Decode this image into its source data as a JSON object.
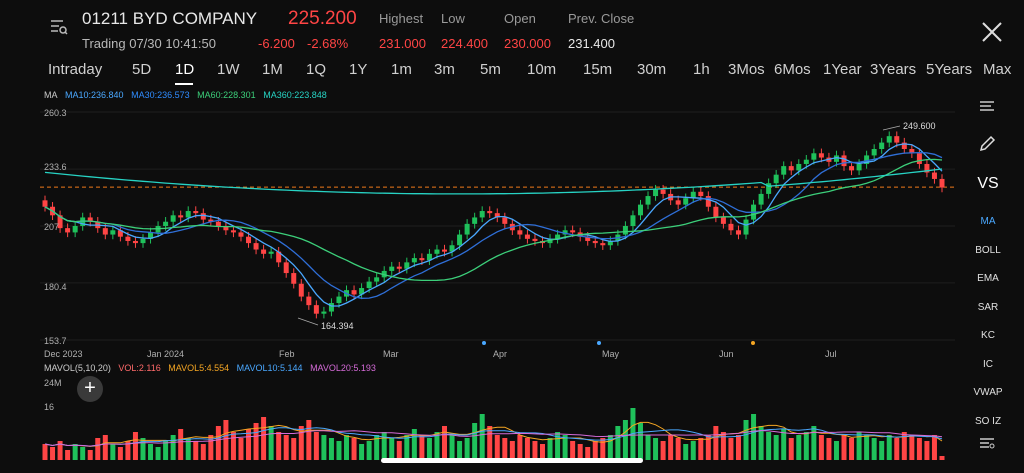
{
  "header": {
    "symbol": "01211 BYD COMPANY",
    "price": "225.200",
    "trading": "Trading 07/30 10:41:50",
    "change": "-6.200",
    "change_pct": "-2.68%",
    "highest_label": "Highest",
    "highest": "231.000",
    "low_label": "Low",
    "low": "224.400",
    "open_label": "Open",
    "open": "230.000",
    "prev_close_label": "Prev. Close",
    "prev_close": "231.400"
  },
  "tabs": [
    "Intraday",
    "5D",
    "1D",
    "1W",
    "1M",
    "1Q",
    "1Y",
    "1m",
    "3m",
    "5m",
    "10m",
    "15m",
    "30m",
    "1h",
    "3Mos",
    "6Mos",
    "1Year",
    "3Years",
    "5Years",
    "Max"
  ],
  "active_tab": "1D",
  "ma_legend": {
    "title": "MA",
    "ma10": "MA10:236.840",
    "ma30": "MA30:236.573",
    "ma60": "MA60:228.301",
    "ma360": "MA360:223.848"
  },
  "y_axis": [
    "260.3",
    "233.6",
    "207",
    "180.4",
    "153.7"
  ],
  "x_axis": [
    "Dec 2023",
    "Jan 2024",
    "Feb",
    "Mar",
    "Apr",
    "May",
    "Jun",
    "Jul"
  ],
  "annotations": {
    "high": "249.600",
    "low": "164.394"
  },
  "vol_legend": {
    "title": "MAVOL(5,10,20)",
    "vol": "VOL:2.116",
    "mavol5": "MAVOL5:4.554",
    "mavol10": "MAVOL10:5.144",
    "mavol20": "MAVOL20:5.193"
  },
  "vol_axis": [
    "24M",
    "16"
  ],
  "sidebar": [
    "MA",
    "BOLL",
    "EMA",
    "SAR",
    "KC",
    "IC",
    "VWAP",
    "SO IZ"
  ],
  "vs_label": "VS",
  "colors": {
    "up": "#1fc15b",
    "down": "#ff4545",
    "ma10": "#4aa8ff",
    "ma30": "#2f6fd8",
    "ma60": "#3ccf7a",
    "ma360": "#27d3c4",
    "mavol5": "#f5a623",
    "mavol10": "#4aa8ff",
    "mavol20": "#d56bd8"
  },
  "chart_data": {
    "type": "candlestick",
    "y_range": [
      153.7,
      260.3
    ],
    "current_price_line": 225.2,
    "close": [
      216,
      212,
      206,
      204,
      207,
      211,
      209,
      206,
      203,
      205,
      202,
      200,
      199,
      201,
      204,
      207,
      209,
      212,
      211,
      214,
      213,
      210,
      209,
      207,
      205,
      204,
      202,
      199,
      196,
      194,
      195,
      190,
      185,
      180,
      174,
      170,
      166,
      167,
      171,
      174,
      177,
      175,
      178,
      181,
      183,
      186,
      188,
      187,
      190,
      192,
      191,
      194,
      196,
      195,
      198,
      203,
      208,
      211,
      214,
      213,
      211,
      208,
      205,
      203,
      201,
      200,
      199,
      201,
      203,
      205,
      204,
      202,
      200,
      199,
      198,
      200,
      203,
      207,
      212,
      217,
      221,
      224,
      222,
      219,
      217,
      220,
      223,
      221,
      216,
      211,
      208,
      205,
      203,
      210,
      217,
      222,
      227,
      231,
      235,
      233,
      236,
      238,
      241,
      239,
      237,
      240,
      235,
      233,
      236,
      240,
      243,
      246,
      249,
      246,
      243,
      241,
      236,
      232,
      229,
      225
    ],
    "vol": [
      6,
      5,
      7,
      4,
      6,
      5,
      4,
      8,
      9,
      6,
      5,
      7,
      10,
      8,
      6,
      5,
      7,
      9,
      11,
      8,
      7,
      6,
      9,
      12,
      14,
      10,
      8,
      11,
      13,
      15,
      12,
      10,
      9,
      8,
      12,
      14,
      10,
      9,
      8,
      7,
      9,
      8,
      6,
      7,
      9,
      10,
      8,
      7,
      9,
      11,
      9,
      8,
      10,
      12,
      9,
      7,
      8,
      13,
      16,
      12,
      9,
      8,
      7,
      9,
      8,
      7,
      6,
      8,
      10,
      9,
      7,
      6,
      5,
      7,
      8,
      9,
      12,
      14,
      18,
      13,
      9,
      8,
      7,
      9,
      8,
      6,
      7,
      8,
      9,
      12,
      10,
      8,
      9,
      14,
      16,
      12,
      10,
      9,
      11,
      8,
      9,
      10,
      12,
      9,
      8,
      7,
      9,
      8,
      10,
      9,
      8,
      7,
      9,
      8,
      10,
      9,
      8,
      7,
      9,
      2
    ]
  }
}
